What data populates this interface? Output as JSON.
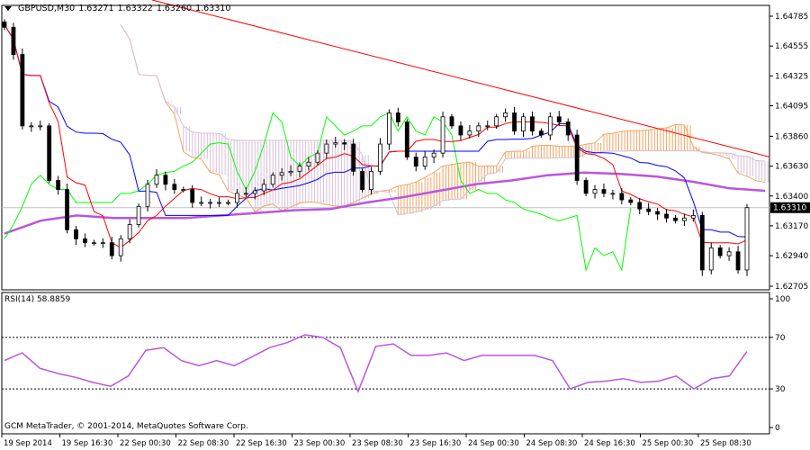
{
  "header": {
    "symbol": "GBPUSD,M30",
    "open": "1.63271",
    "high": "1.63322",
    "low": "1.63260",
    "close": "1.63310"
  },
  "rsi_label": "RSI(14) 58.8859",
  "copyright": "GCM MetaTrader, © 2001-2014, MetaQuotes Software Corp.",
  "price_axis": [
    "1.64785",
    "1.64555",
    "1.64325",
    "1.64095",
    "1.63860",
    "1.63630",
    "1.63400",
    "1.63170",
    "1.62940",
    "1.62705"
  ],
  "current_price": "1.63310",
  "rsi_axis": [
    "100",
    "70",
    "30",
    "0"
  ],
  "time_axis": [
    "19 Sep 2014",
    "19 Sep 16:30",
    "22 Sep 00:30",
    "22 Sep 08:30",
    "22 Sep 16:30",
    "23 Sep 00:30",
    "23 Sep 08:30",
    "23 Sep 16:30",
    "24 Sep 00:30",
    "24 Sep 08:30",
    "24 Sep 16:30",
    "25 Sep 00:30",
    "25 Sep 08:30"
  ],
  "colors": {
    "tenkan": "#ff0000",
    "kijun": "#0000ff",
    "chikou": "#00ff00",
    "span_a": "#f4a460",
    "span_b": "#d8bfd8",
    "ma": "#bb55dd",
    "trendline": "#ff0000",
    "rsi": "#bb55dd",
    "current_price_bg": "#000000"
  },
  "chart_data": {
    "type": "candlestick",
    "price_range": [
      1.62705,
      1.64785
    ],
    "closes": [
      1.647,
      1.6449,
      1.6394,
      1.6394,
      1.6394,
      1.6352,
      1.6345,
      1.6314,
      1.6307,
      1.6304,
      1.6304,
      1.6304,
      1.6294,
      1.6307,
      1.6318,
      1.6332,
      1.6349,
      1.6356,
      1.6349,
      1.6345,
      1.6345,
      1.6335,
      1.6335,
      1.6335,
      1.6335,
      1.6335,
      1.6342,
      1.6342,
      1.6344,
      1.6349,
      1.6356,
      1.6358,
      1.6359,
      1.6363,
      1.6366,
      1.6373,
      1.638,
      1.6381,
      1.638,
      1.6359,
      1.6345,
      1.6359,
      1.638,
      1.6404,
      1.6397,
      1.637,
      1.6363,
      1.637,
      1.6373,
      1.6401,
      1.6394,
      1.6387,
      1.639,
      1.6394,
      1.6394,
      1.6401,
      1.6404,
      1.639,
      1.6401,
      1.639,
      1.6387,
      1.6401,
      1.6397,
      1.6387,
      1.6352,
      1.6342,
      1.6345,
      1.6342,
      1.6342,
      1.6337,
      1.6335,
      1.633,
      1.6328,
      1.6326,
      1.6323,
      1.6321,
      1.6323,
      1.6325,
      1.6283,
      1.63,
      1.6294,
      1.6297,
      1.6283,
      1.6331
    ],
    "moving_average": [
      1.6311,
      1.6321,
      1.6325,
      1.6323,
      1.6323,
      1.6323,
      1.6325,
      1.6327,
      1.6329,
      1.633,
      1.6335,
      1.6339,
      1.6344,
      1.6349,
      1.6352,
      1.6356,
      1.6358,
      1.6357,
      1.6355,
      1.6351,
      1.6346,
      1.6344
    ],
    "trendline": {
      "start_bar": 16.5,
      "start_price": 1.6491,
      "end_bar": 85,
      "end_price": 1.6371
    },
    "rsi": {
      "period": 14,
      "levels": [
        70,
        30
      ],
      "range": [
        0,
        100
      ],
      "values": [
        52,
        58,
        46,
        42,
        39,
        35,
        32,
        40,
        60,
        62,
        52,
        48,
        52,
        48,
        55,
        62,
        66,
        72,
        70,
        62,
        28,
        63,
        65,
        56,
        56,
        58,
        52,
        56,
        56,
        56,
        56,
        52,
        30,
        35,
        36,
        38,
        35,
        36,
        40,
        30,
        38,
        40,
        59
      ]
    }
  }
}
